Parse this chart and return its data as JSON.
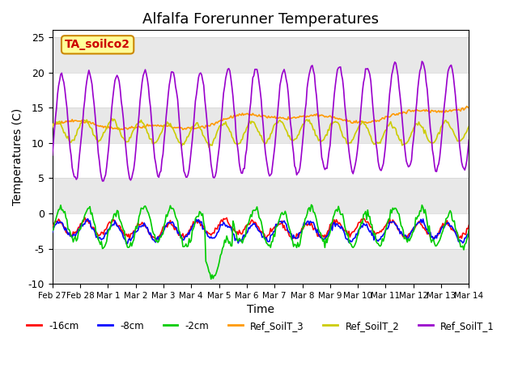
{
  "title": "Alfalfa Forerunner Temperatures",
  "xlabel": "Time",
  "ylabel": "Temperatures (C)",
  "ylim": [
    -10,
    26
  ],
  "yticks": [
    -10,
    -5,
    0,
    5,
    10,
    15,
    20,
    25
  ],
  "annotation_text": "TA_soilco2",
  "annotation_box_color": "#ffff99",
  "annotation_border_color": "#cc8800",
  "series_colors": {
    "d16cm": "#ff0000",
    "d8cm": "#0000ff",
    "d2cm": "#00cc00",
    "ref3": "#ff9900",
    "ref2": "#cccc00",
    "ref1": "#9900cc"
  },
  "legend_labels": [
    "-16cm",
    "-8cm",
    "-2cm",
    "Ref_SoilT_3",
    "Ref_SoilT_2",
    "Ref_SoilT_1"
  ],
  "legend_colors": [
    "#ff0000",
    "#0000ff",
    "#00cc00",
    "#ff9900",
    "#cccc00",
    "#9900cc"
  ],
  "background_stripe_color": "#e8e8e8",
  "n_points": 400,
  "x_tick_labels": [
    "Feb 27",
    "Feb 28",
    "Mar 1",
    "Mar 2",
    "Mar 3",
    "Mar 4",
    "Mar 5",
    "Mar 6",
    "Mar 7",
    "Mar 8",
    "Mar 9",
    "Mar 10",
    "Mar 11",
    "Mar 12",
    "Mar 13",
    "Mar 14"
  ],
  "xlim": [
    0,
    15
  ]
}
